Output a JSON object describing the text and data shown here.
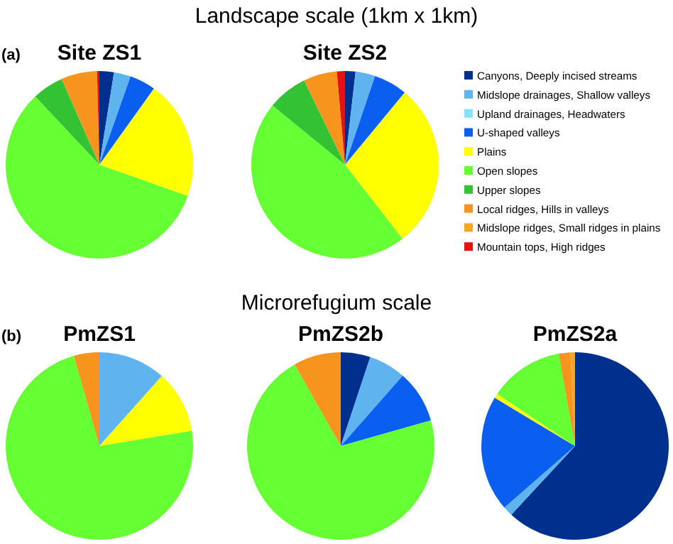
{
  "chart_data": [
    {
      "type": "pie",
      "title": "Site ZS1",
      "annotations": [
        "Landscape scale (1km x 1km)",
        "(a)"
      ],
      "categories": [
        null,
        null,
        null,
        null,
        null,
        null,
        null,
        null,
        null,
        null
      ],
      "values": [
        2.5,
        2.9,
        0,
        4.5,
        20.5,
        57.6,
        5.4,
        6.2,
        0,
        0.4
      ],
      "colors": [
        "#002f8e",
        "#5fb4f0",
        "#86e0ff",
        "#0a5ff0",
        "#ffff00",
        "#66ff33",
        "#33c233",
        "#f7941d",
        "#f5a623",
        "#e81010"
      ],
      "legend": false
    },
    {
      "type": "pie",
      "title": "Site ZS2",
      "categories": [
        "Canyons, Deeply incised streams",
        "Midslope drainages, Shallow valleys",
        "Upland drainages, Headwaters",
        "U-shaped valleys",
        "Plains",
        "Open slopes",
        "Upper slopes",
        "Local ridges, Hills in valleys",
        "Midslope ridges, Small ridges in plains",
        "Mountain tops, High ridges"
      ],
      "values": [
        1.8,
        3.4,
        0,
        5.8,
        28.5,
        46.4,
        6.9,
        5.8,
        0,
        1.4
      ],
      "colors": [
        "#002f8e",
        "#5fb4f0",
        "#86e0ff",
        "#0a5ff0",
        "#ffff00",
        "#66ff33",
        "#33c233",
        "#f7941d",
        "#f5a623",
        "#e81010"
      ],
      "legend": "right"
    },
    {
      "type": "pie",
      "title": "PmZS1",
      "annotations": [
        "Microrefugium scale",
        "(b)"
      ],
      "categories": [
        null,
        null,
        null,
        null,
        null,
        null,
        null,
        null,
        null,
        null
      ],
      "values": [
        0,
        11.6,
        0,
        0,
        10.8,
        73.2,
        0,
        4.4,
        0,
        0
      ],
      "colors": [
        "#002f8e",
        "#5fb4f0",
        "#86e0ff",
        "#0a5ff0",
        "#ffff00",
        "#66ff33",
        "#33c233",
        "#f7941d",
        "#f5a623",
        "#e81010"
      ],
      "legend": false
    },
    {
      "type": "pie",
      "title": "PmZS2b",
      "categories": [
        null,
        null,
        null,
        null,
        null,
        null,
        null,
        null,
        null,
        null
      ],
      "values": [
        5.1,
        6.4,
        0,
        9.1,
        0,
        71.2,
        0,
        8.2,
        0,
        0
      ],
      "colors": [
        "#002f8e",
        "#5fb4f0",
        "#86e0ff",
        "#0a5ff0",
        "#ffff00",
        "#66ff33",
        "#33c233",
        "#f7941d",
        "#f5a623",
        "#e81010"
      ],
      "legend": false
    },
    {
      "type": "pie",
      "title": "PmZS2a",
      "categories": [
        null,
        null,
        null,
        null,
        null,
        null,
        null,
        null,
        null,
        null
      ],
      "values": [
        61.9,
        1.7,
        0,
        20.0,
        0.8,
        12.8,
        0,
        2.0,
        0.8,
        0
      ],
      "colors": [
        "#002f8e",
        "#5fb4f0",
        "#86e0ff",
        "#0a5ff0",
        "#ffff00",
        "#66ff33",
        "#33c233",
        "#f7941d",
        "#f5a623",
        "#e81010"
      ],
      "legend": false
    }
  ]
}
